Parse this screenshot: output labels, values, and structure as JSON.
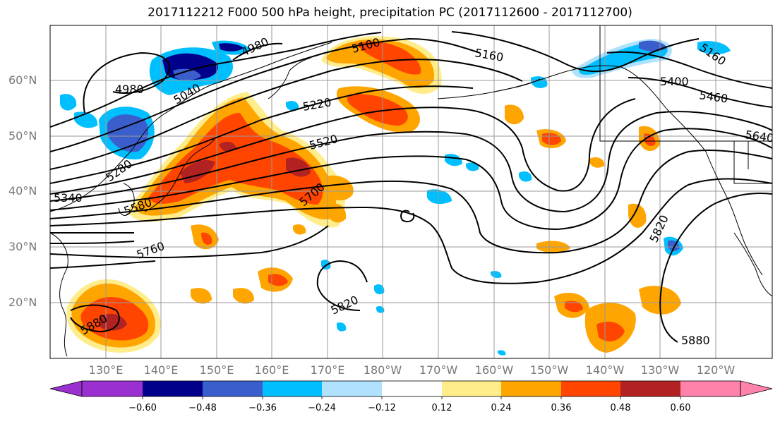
{
  "title": "2017112212 F000 500 hPa height, precipitation PC (2017112600 - 2017112700)",
  "lat_labels": [
    "60°N",
    "50°N",
    "40°N",
    "30°N",
    "20°N"
  ],
  "lon_labels": [
    "130°E",
    "140°E",
    "150°E",
    "160°E",
    "170°E",
    "180°W",
    "170°W",
    "160°W",
    "150°W",
    "140°W",
    "130°W",
    "120°W"
  ],
  "contour_labels": [
    "4980",
    "4980",
    "5040",
    "5100",
    "5160",
    "5220",
    "5280",
    "5340",
    "5400",
    "5460",
    "5520",
    "5580",
    "5640",
    "5700",
    "5760",
    "5820",
    "5820",
    "5880",
    "5880",
    "5160"
  ],
  "colorbar": {
    "ticks": [
      "−0.60",
      "−0.48",
      "−0.36",
      "−0.24",
      "−0.12",
      "0.12",
      "0.24",
      "0.36",
      "0.48",
      "0.60"
    ],
    "colors": [
      "#9b30d0",
      "#00008b",
      "#3a5fcd",
      "#00bfff",
      "#b0e2ff",
      "#ffffff",
      "#ffec8b",
      "#ffa500",
      "#ff4500",
      "#b22222",
      "#ff82ab",
      "#ff82ab"
    ]
  },
  "colors": {
    "dark_red": "#b22222",
    "red": "#ff4500",
    "orange": "#ffa500",
    "yellow": "#ffec8b",
    "navy": "#00008b",
    "blue": "#3a5fcd",
    "cyan": "#00bfff",
    "light_blue": "#b0e2ff",
    "contour": "#000000",
    "grid": "#999999"
  }
}
